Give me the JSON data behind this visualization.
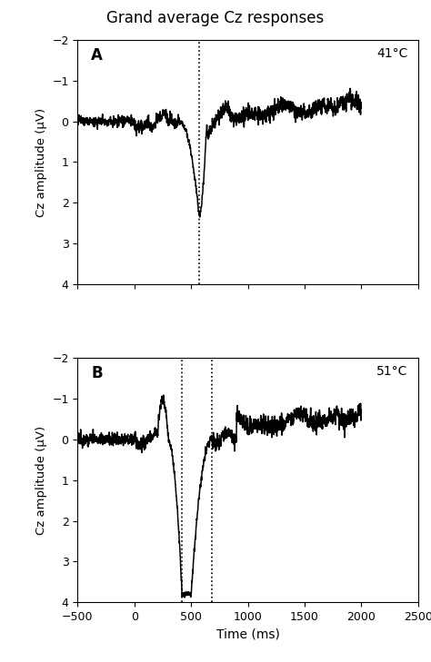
{
  "title": "Grand average Cz responses",
  "title_fontsize": 12,
  "xlabel": "Time (ms)",
  "ylabel": "Cz amplitude (μV)",
  "xlim": [
    -500,
    2500
  ],
  "ylim": [
    4.0,
    -2.0
  ],
  "xticks": [
    -500,
    0,
    500,
    1000,
    1500,
    2000,
    2500
  ],
  "yticks": [
    -2,
    -1,
    0,
    1,
    2,
    3,
    4
  ],
  "dotted_line_A": 570,
  "dotted_line_B1": 420,
  "dotted_line_B2": 680,
  "label_A": "A",
  "label_B": "B",
  "temp_A": "41°C",
  "temp_B": "51°C",
  "line_color": "#000000",
  "line_width": 1.1,
  "background_color": "#ffffff"
}
